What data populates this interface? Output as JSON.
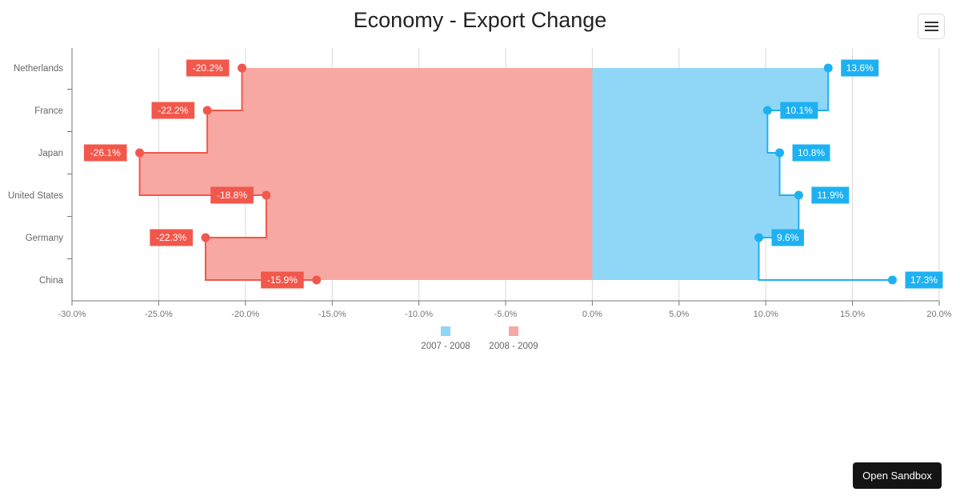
{
  "title": "Economy - Export Change",
  "menu_button": {
    "icon": "hamburger-menu-icon"
  },
  "open_sandbox_label": "Open Sandbox",
  "chart_data": {
    "type": "range-bar-step",
    "title": "Economy - Export Change",
    "categories": [
      "Netherlands",
      "France",
      "Japan",
      "United States",
      "Germany",
      "China"
    ],
    "series": [
      {
        "name": "2007 - 2008",
        "color": "#1eb1f1",
        "fill": "#8fd6f7",
        "values": [
          13.6,
          10.1,
          10.8,
          11.9,
          9.6,
          17.3
        ]
      },
      {
        "name": "2008 - 2009",
        "color": "#f2574b",
        "fill": "#f8a8a2",
        "values": [
          -20.2,
          -22.2,
          -26.1,
          -18.8,
          -22.3,
          -15.9
        ]
      }
    ],
    "x_ticks": [
      "-30.0%",
      "-25.0%",
      "-20.0%",
      "-15.0%",
      "-10.0%",
      "-5.0%",
      "0.0%",
      "5.0%",
      "10.0%",
      "15.0%",
      "20.0%"
    ],
    "xlim": [
      -30,
      20
    ],
    "xlabel": "",
    "ylabel": "",
    "grid": true,
    "legend_position": "bottom",
    "legend": [
      "2007 - 2008",
      "2008 - 2009"
    ]
  }
}
